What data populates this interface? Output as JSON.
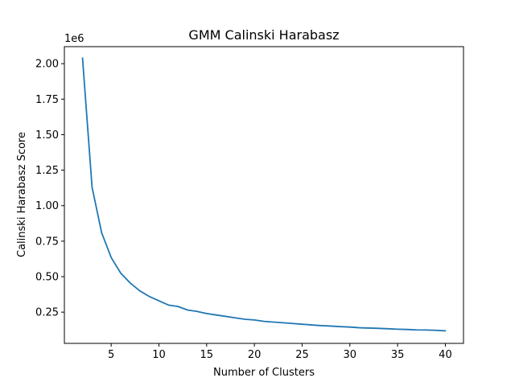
{
  "chart_data": {
    "type": "line",
    "title": "GMM Calinski Harabasz",
    "xlabel": "Number of Clusters",
    "ylabel": "Calinski Harabasz Score",
    "y_offset_label": "1e6",
    "xlim": [
      0.1,
      41.9
    ],
    "ylim": [
      0.03,
      2.12
    ],
    "x_ticks": [
      5,
      10,
      15,
      20,
      25,
      30,
      35,
      40
    ],
    "x_tick_labels": [
      "5",
      "10",
      "15",
      "20",
      "25",
      "30",
      "35",
      "40"
    ],
    "y_ticks": [
      0.25,
      0.5,
      0.75,
      1.0,
      1.25,
      1.5,
      1.75,
      2.0
    ],
    "y_tick_labels": [
      "0.25",
      "0.50",
      "0.75",
      "1.00",
      "1.25",
      "1.50",
      "1.75",
      "2.00"
    ],
    "grid": false,
    "series_color": "#1f77b4",
    "x": [
      2,
      3,
      4,
      5,
      6,
      7,
      8,
      9,
      10,
      11,
      12,
      13,
      14,
      15,
      16,
      17,
      18,
      19,
      20,
      21,
      22,
      23,
      24,
      25,
      26,
      27,
      28,
      29,
      30,
      31,
      32,
      33,
      34,
      35,
      36,
      37,
      38,
      39,
      40
    ],
    "y": [
      2.04,
      1.13,
      0.81,
      0.635,
      0.525,
      0.455,
      0.4,
      0.36,
      0.33,
      0.3,
      0.29,
      0.265,
      0.255,
      0.24,
      0.23,
      0.22,
      0.21,
      0.2,
      0.195,
      0.185,
      0.18,
      0.175,
      0.17,
      0.165,
      0.16,
      0.155,
      0.152,
      0.148,
      0.145,
      0.14,
      0.138,
      0.136,
      0.133,
      0.13,
      0.128,
      0.125,
      0.124,
      0.122,
      0.118
    ]
  }
}
